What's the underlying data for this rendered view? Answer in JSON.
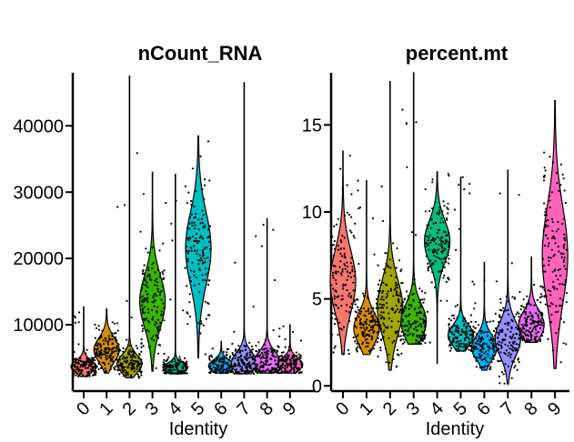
{
  "chart_data": [
    {
      "type": "violin",
      "title": "nCount_RNA",
      "xlabel": "Identity",
      "ylabel": "",
      "ylim": [
        0,
        48000
      ],
      "yticks": [
        10000,
        20000,
        30000,
        40000
      ],
      "ytick_labels": [
        "10000",
        "20000",
        "30000",
        "40000"
      ],
      "categories": [
        "0",
        "1",
        "2",
        "3",
        "4",
        "5",
        "6",
        "7",
        "8",
        "9"
      ],
      "series": [
        {
          "name": "0",
          "color": "#f8766d",
          "min": 2200,
          "max": 12700,
          "median": 3600,
          "center": 3700,
          "spread": 900
        },
        {
          "name": "1",
          "color": "#d89000",
          "min": 2700,
          "max": 12400,
          "median": 6000,
          "center": 6200,
          "spread": 1800
        },
        {
          "name": "2",
          "color": "#a3a500",
          "min": 2000,
          "max": 47500,
          "median": 4000,
          "center": 4100,
          "spread": 1300
        },
        {
          "name": "3",
          "color": "#39b600",
          "min": 3000,
          "max": 33000,
          "median": 13500,
          "center": 13500,
          "spread": 4000
        },
        {
          "name": "4",
          "color": "#00bf7d",
          "min": 2600,
          "max": 32700,
          "median": 3600,
          "center": 3500,
          "spread": 700
        },
        {
          "name": "5",
          "color": "#00bfc4",
          "min": 5000,
          "max": 38500,
          "median": 21500,
          "center": 21500,
          "spread": 5500
        },
        {
          "name": "6",
          "color": "#00b0f6",
          "min": 2700,
          "max": 7500,
          "median": 3700,
          "center": 3800,
          "spread": 900
        },
        {
          "name": "7",
          "color": "#9590ff",
          "min": 2600,
          "max": 46500,
          "median": 4200,
          "center": 4300,
          "spread": 1500
        },
        {
          "name": "8",
          "color": "#e76bf3",
          "min": 2700,
          "max": 26000,
          "median": 4500,
          "center": 4500,
          "spread": 1500
        },
        {
          "name": "9",
          "color": "#ff62bc",
          "min": 2700,
          "max": 10000,
          "median": 4000,
          "center": 4000,
          "spread": 1000
        }
      ]
    },
    {
      "type": "violin",
      "title": "percent.mt",
      "xlabel": "Identity",
      "ylabel": "",
      "ylim": [
        -0.3,
        18
      ],
      "yticks": [
        0,
        5,
        10,
        15
      ],
      "ytick_labels": [
        "0",
        "5",
        "10",
        "15"
      ],
      "categories": [
        "0",
        "1",
        "2",
        "3",
        "4",
        "5",
        "6",
        "7",
        "8",
        "9"
      ],
      "series": [
        {
          "name": "0",
          "color": "#f8766d",
          "min": 1.8,
          "max": 13.5,
          "median": 6.0,
          "center": 6.0,
          "spread": 1.8
        },
        {
          "name": "1",
          "color": "#d89000",
          "min": 1.8,
          "max": 11.8,
          "median": 3.2,
          "center": 3.3,
          "spread": 0.9
        },
        {
          "name": "2",
          "color": "#a3a500",
          "min": 0.9,
          "max": 17.5,
          "median": 4.5,
          "center": 4.5,
          "spread": 1.6
        },
        {
          "name": "3",
          "color": "#39b600",
          "min": 2.4,
          "max": 18.0,
          "median": 3.6,
          "center": 3.7,
          "spread": 1.0
        },
        {
          "name": "4",
          "color": "#00bf7d",
          "min": 1.3,
          "max": 12.3,
          "median": 8.3,
          "center": 8.3,
          "spread": 1.2
        },
        {
          "name": "5",
          "color": "#00bfc4",
          "min": 2.0,
          "max": 12.0,
          "median": 2.8,
          "center": 2.9,
          "spread": 0.6
        },
        {
          "name": "6",
          "color": "#00b0f6",
          "min": 0.9,
          "max": 7.1,
          "median": 2.1,
          "center": 2.2,
          "spread": 0.7
        },
        {
          "name": "7",
          "color": "#9590ff",
          "min": 0.1,
          "max": 12.4,
          "median": 2.6,
          "center": 2.7,
          "spread": 1.0
        },
        {
          "name": "8",
          "color": "#e76bf3",
          "min": 2.5,
          "max": 7.4,
          "median": 3.4,
          "center": 3.5,
          "spread": 0.8
        },
        {
          "name": "9",
          "color": "#ff62bc",
          "min": 1.0,
          "max": 16.4,
          "median": 7.5,
          "center": 7.5,
          "spread": 2.8
        }
      ]
    }
  ]
}
